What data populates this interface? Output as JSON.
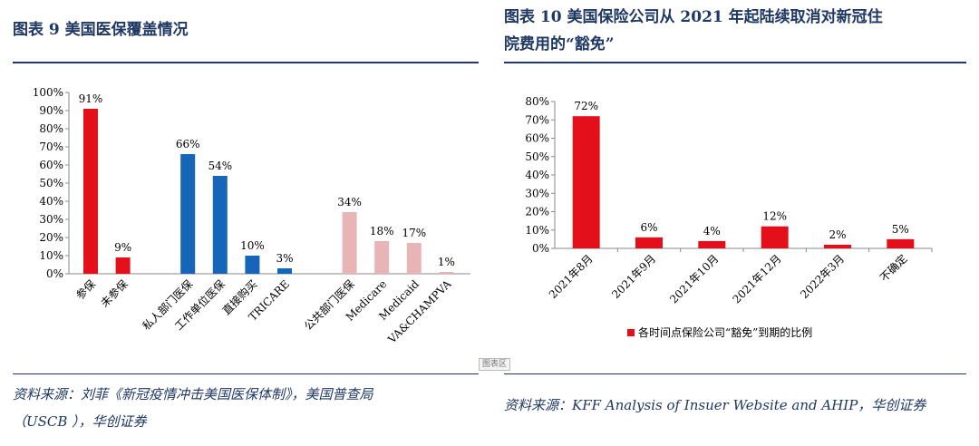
{
  "left_panel": {
    "title": "图表  9    美国医保覆盖情况",
    "source_line1": "资料来源：刘菲《新冠疫情冲击美国医保体制》，美国普查局",
    "source_line2": "（USCB ），华创证券"
  },
  "right_panel": {
    "title_line1": "图表  10    美国保险公司从 2021 年起陆续取消对新冠住",
    "title_line2": "院费用的“豁免”",
    "source": "资料来源：KFF Analysis of Insuer Website and AHIP，华创证券",
    "watermark": "图表区"
  },
  "chart_data": [
    {
      "type": "bar",
      "title": "美国医保覆盖情况",
      "ylim": [
        0,
        100
      ],
      "yticks": [
        "0%",
        "10%",
        "20%",
        "30%",
        "40%",
        "50%",
        "60%",
        "70%",
        "80%",
        "90%",
        "100%"
      ],
      "categories": [
        "参保",
        "未参保",
        "私人部门医保",
        "工作单位医保",
        "直接购买",
        "TRICARE",
        "公共部门医保",
        "Medicare",
        "Medicaid",
        "VA&CHAMPVA"
      ],
      "values": [
        91,
        9,
        66,
        54,
        10,
        3,
        34,
        18,
        17,
        1
      ],
      "labels": [
        "91%",
        "9%",
        "66%",
        "54%",
        "10%",
        "3%",
        "34%",
        "18%",
        "17%",
        "1%"
      ],
      "groups": [
        0,
        0,
        1,
        1,
        1,
        1,
        2,
        2,
        2,
        2
      ],
      "colors": [
        "#e30f1b",
        "#e30f1b",
        "#1565b8",
        "#1565b8",
        "#1565b8",
        "#1565b8",
        "#e8b4b6",
        "#e8b4b6",
        "#e8b4b6",
        "#e8b4b6"
      ],
      "grid": false
    },
    {
      "type": "bar",
      "title": "美国保险公司从2021年起陆续取消对新冠住院费用的“豁免”",
      "ylim": [
        0,
        80
      ],
      "yticks": [
        "0%",
        "10%",
        "20%",
        "30%",
        "40%",
        "50%",
        "60%",
        "70%",
        "80%"
      ],
      "categories": [
        "2021年8月",
        "2021年9月",
        "2021年10月",
        "2021年12月",
        "2022年3月",
        "不确定"
      ],
      "values": [
        72,
        6,
        4,
        12,
        2,
        5
      ],
      "labels": [
        "72%",
        "6%",
        "4%",
        "12%",
        "2%",
        "5%"
      ],
      "color": "#e30f1b",
      "legend": "各时间点保险公司“豁免”到期的比例",
      "legend_position": "bottom",
      "grid": false
    }
  ]
}
